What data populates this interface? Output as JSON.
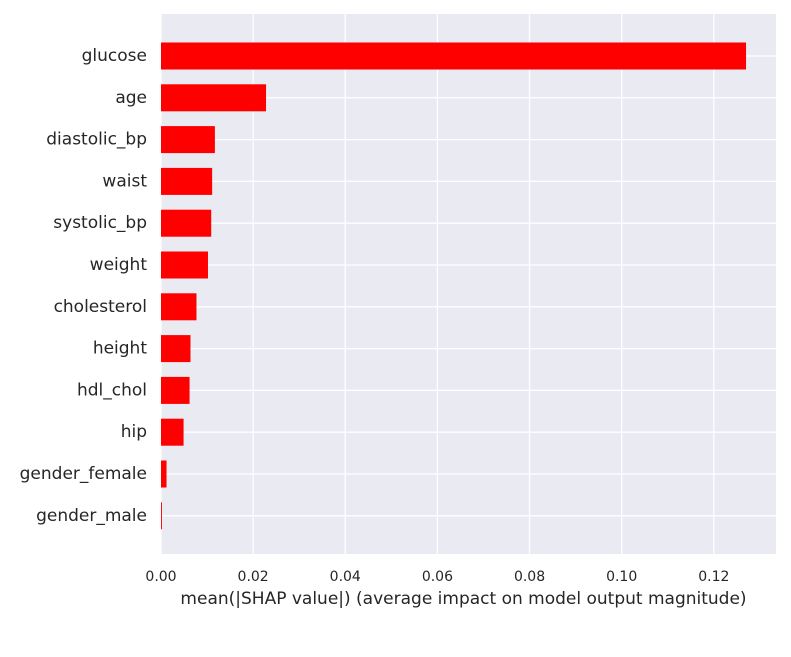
{
  "chart_data": {
    "type": "bar",
    "orientation": "horizontal",
    "categories": [
      "glucose",
      "age",
      "diastolic_bp",
      "waist",
      "systolic_bp",
      "weight",
      "cholesterol",
      "height",
      "hdl_chol",
      "hip",
      "gender_female",
      "gender_male"
    ],
    "values": [
      0.127,
      0.0228,
      0.0117,
      0.0111,
      0.0109,
      0.0102,
      0.0077,
      0.0064,
      0.0062,
      0.0049,
      0.0012,
      0.0002
    ],
    "xlabel": "mean(|SHAP value|) (average impact on model output magnitude)",
    "xlim": [
      0.0,
      0.1335
    ],
    "xticks": [
      0.0,
      0.02,
      0.04,
      0.06,
      0.08,
      0.1,
      0.12
    ],
    "xtick_labels": [
      "0.00",
      "0.02",
      "0.04",
      "0.06",
      "0.08",
      "0.10",
      "0.12"
    ],
    "grid": true,
    "colors": {
      "bar": "#ff0000",
      "plot_background": "#eaeaf2",
      "grid": "#ffffff",
      "text": "#262626"
    }
  }
}
